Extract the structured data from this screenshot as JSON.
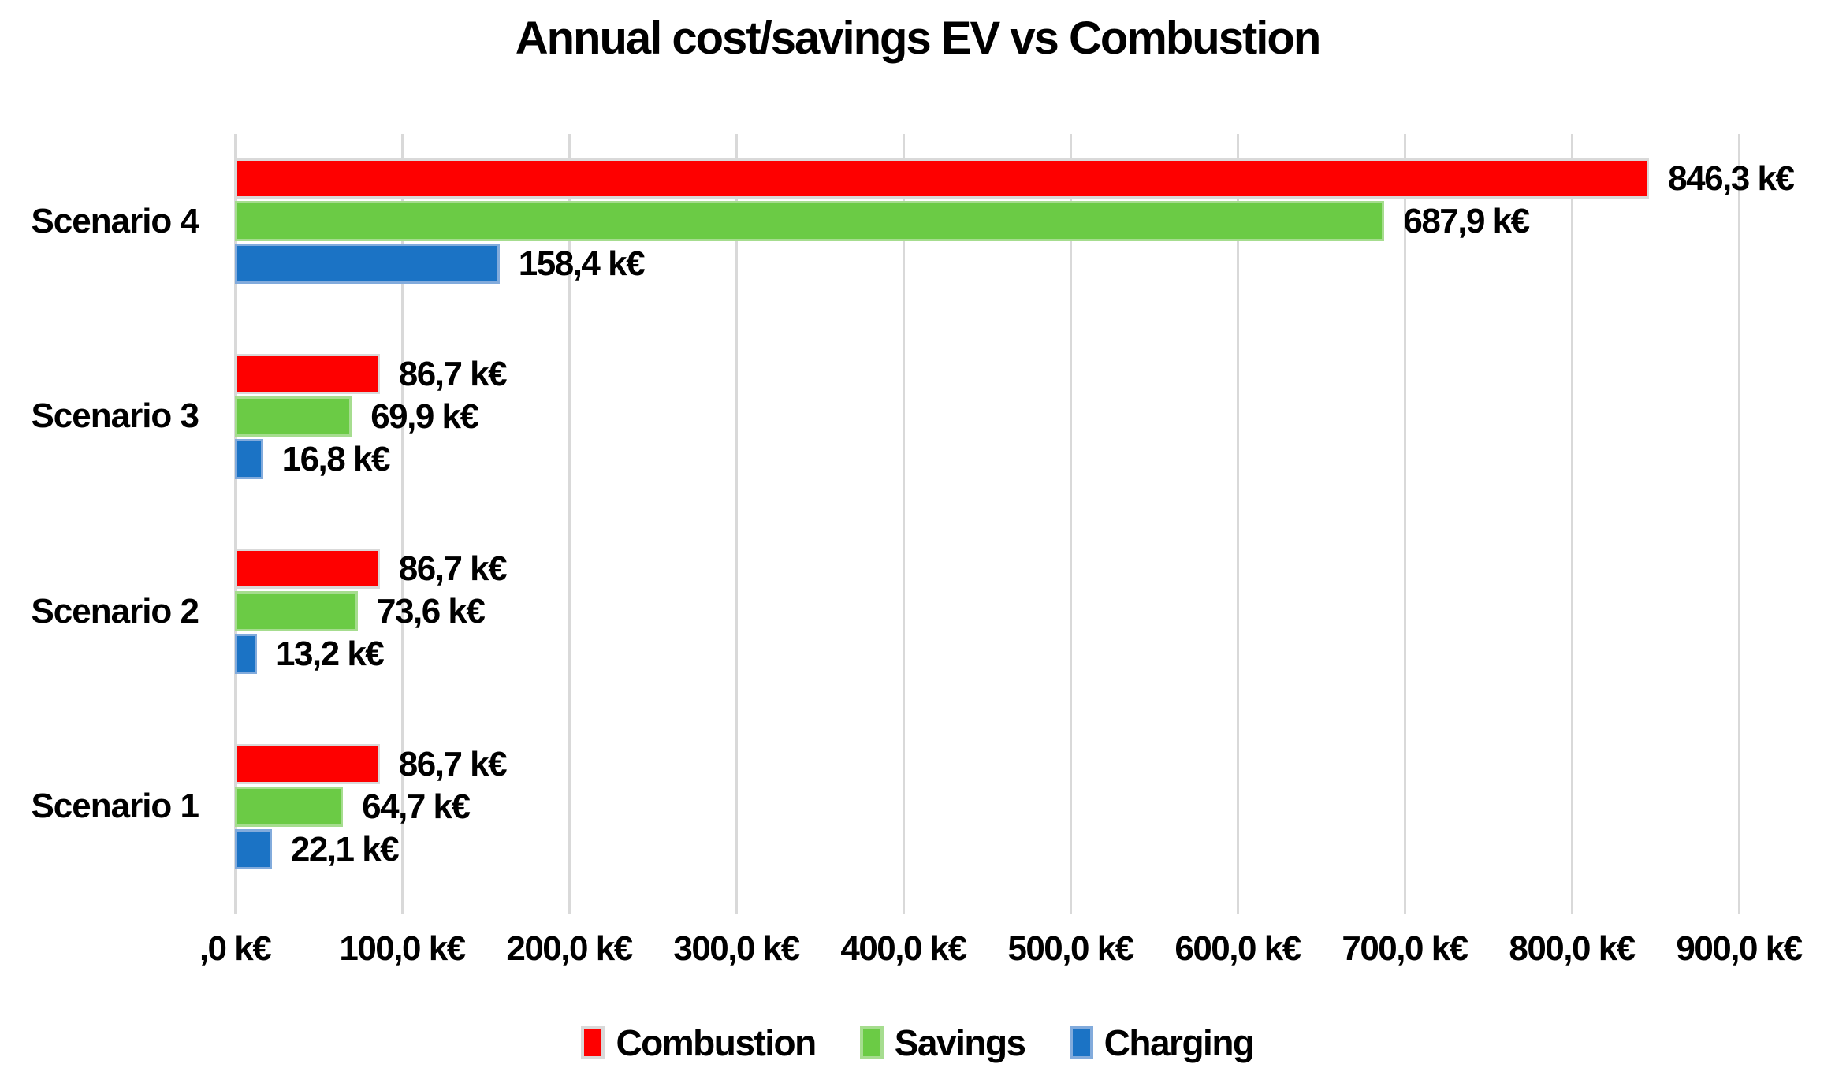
{
  "chart_data": {
    "type": "bar",
    "orientation": "horizontal",
    "title": "Annual cost/savings EV vs Combustion",
    "categories": [
      "Scenario 4",
      "Scenario 3",
      "Scenario 2",
      "Scenario 1"
    ],
    "series": [
      {
        "name": "Combustion",
        "color": "#fe0000",
        "border_color": "#d9d9d9",
        "values": [
          846.3,
          86.7,
          86.7,
          86.7
        ],
        "labels": [
          "846,3 k€",
          "86,7 k€",
          "86,7 k€",
          "86,7 k€"
        ]
      },
      {
        "name": "Savings",
        "color": "#6bcb45",
        "border_color": "#a6dd8f",
        "values": [
          687.9,
          69.9,
          73.6,
          64.7
        ],
        "labels": [
          "687,9 k€",
          "69,9 k€",
          "73,6 k€",
          "64,7 k€"
        ]
      },
      {
        "name": "Charging",
        "color": "#1b73c5",
        "border_color": "#82abdc",
        "values": [
          158.4,
          16.8,
          13.2,
          22.1
        ],
        "labels": [
          "158,4 k€",
          "16,8 k€",
          "13,2 k€",
          "22,1 k€"
        ]
      }
    ],
    "x_axis": {
      "min": 0,
      "max": 900,
      "step": 100,
      "tick_labels": [
        ",0 k€",
        "100,0 k€",
        "200,0 k€",
        "300,0 k€",
        "400,0 k€",
        "500,0 k€",
        "600,0 k€",
        "700,0 k€",
        "800,0 k€",
        "900,0 k€"
      ]
    },
    "ylabel": "",
    "xlabel": "",
    "grid": "vertical",
    "legend_position": "bottom",
    "value_labels_visible": true
  },
  "colors": {
    "gridline": "#d9d9d9",
    "text": "#000000",
    "background": "#ffffff"
  }
}
